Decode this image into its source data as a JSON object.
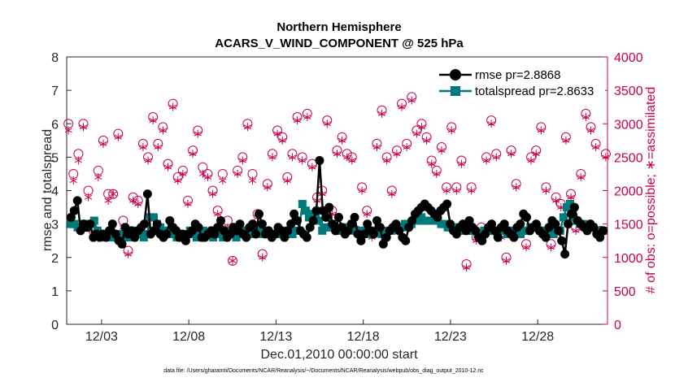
{
  "chart_data": {
    "type": "line",
    "title": "Northern Hemisphere",
    "subtitle": "ACARS_V_WIND_COMPONENT @ 525 hPa",
    "xlabel": "Dec.01,2010 00:00:00 start",
    "ylabel": "rmse and totalspread",
    "ylabel_right": "# of obs: o=possible; ∗=assimilated",
    "x_tick_labels": [
      "12/03",
      "12/08",
      "12/13",
      "12/18",
      "12/23",
      "12/28"
    ],
    "x_tick_days": [
      2,
      7,
      12,
      17,
      22,
      27
    ],
    "xlim": [
      0,
      31
    ],
    "ylim": [
      0,
      8
    ],
    "y_ticks": [
      "0",
      "1",
      "2",
      "3",
      "4",
      "5",
      "6",
      "7",
      "8"
    ],
    "ylim_right": [
      0,
      4000
    ],
    "y_ticks_right": [
      "0",
      "500",
      "1000",
      "1500",
      "2000",
      "2500",
      "3000",
      "3500",
      "4000"
    ],
    "grid": false,
    "legend_position": "top-right",
    "footnote": "data file: /Users/gharamti/Documents/NCAR/Reanalysis/~/Documents/NCAR/Reanalysis/webpub/obs_diag_output_2010-12.nc",
    "series": [
      {
        "name": "rmse pr=2.8868",
        "color": "#000000",
        "axis": "left",
        "values": [
          3.2,
          3.4,
          3.7,
          2.8,
          3.0,
          2.9,
          3.0,
          2.6,
          2.7,
          2.6,
          2.7,
          2.6,
          2.8,
          3.0,
          2.7,
          2.5,
          2.4,
          2.9,
          2.7,
          2.8,
          2.6,
          2.8,
          2.9,
          3.0,
          3.9,
          2.7,
          2.8,
          3.0,
          2.7,
          2.6,
          2.7,
          3.1,
          2.9,
          2.8,
          2.6,
          2.7,
          2.5,
          2.7,
          2.8,
          3.0,
          2.9,
          2.6,
          2.6,
          2.7,
          2.8,
          2.7,
          2.9,
          3.1,
          2.8,
          2.6,
          2.7,
          2.9,
          2.8,
          3.0,
          2.7,
          2.6,
          2.9,
          3.0,
          2.7,
          3.3,
          3.0,
          2.7,
          2.8,
          2.6,
          2.7,
          2.9,
          2.8,
          2.6,
          2.8,
          3.0,
          3.3,
          3.1,
          2.8,
          2.7,
          2.6,
          2.9,
          3.1,
          3.4,
          4.9,
          3.4,
          3.2,
          3.5,
          3.0,
          2.8,
          3.2,
          2.9,
          2.7,
          2.8,
          3.0,
          3.2,
          2.7,
          2.5,
          2.7,
          3.0,
          2.8,
          2.7,
          3.1,
          2.9,
          2.4,
          2.6,
          2.8,
          2.9,
          3.0,
          2.8,
          2.6,
          2.5,
          2.9,
          3.1,
          3.3,
          3.4,
          3.5,
          3.6,
          3.5,
          3.4,
          3.3,
          3.2,
          3.4,
          3.5,
          3.6,
          3.0,
          2.8,
          2.7,
          2.9,
          3.0,
          2.8,
          3.1,
          2.9,
          2.8,
          2.6,
          2.5,
          2.7,
          2.9,
          3.0,
          2.8,
          2.6,
          2.9,
          3.0,
          2.8,
          2.7,
          2.6,
          2.9,
          3.0,
          3.3,
          3.2,
          2.8,
          2.9,
          3.0,
          2.8,
          2.7,
          2.6,
          2.9,
          3.1,
          3.0,
          2.8,
          2.5,
          2.1,
          3.0,
          3.3,
          3.5,
          3.1,
          3.0,
          2.9,
          2.8,
          3.0,
          2.9,
          2.7,
          2.6,
          2.8
        ]
      },
      {
        "name": "totalspread pr=2.8633",
        "color": "#007a7a",
        "axis": "left",
        "values": [
          3.0,
          3.0,
          2.9,
          2.9,
          3.0,
          2.9,
          3.0,
          3.1,
          2.8,
          2.7,
          2.6,
          2.6,
          2.7,
          2.6,
          2.6,
          2.7,
          2.7,
          2.6,
          2.7,
          2.6,
          2.8,
          2.7,
          2.6,
          2.7,
          3.2,
          3.2,
          3.0,
          2.9,
          2.8,
          2.7,
          2.7,
          2.7,
          2.6,
          2.6,
          2.7,
          2.7,
          2.8,
          2.7,
          2.6,
          2.7,
          2.8,
          2.7,
          2.7,
          2.6,
          2.7,
          2.7,
          2.6,
          2.7,
          2.8,
          2.7,
          2.6,
          2.7,
          2.8,
          2.8,
          2.7,
          2.7,
          2.8,
          2.8,
          2.7,
          2.8,
          2.7,
          2.7,
          2.7,
          2.7,
          2.8,
          2.7,
          2.7,
          2.7,
          2.8,
          2.8,
          3.6,
          3.4,
          3.2,
          3.3,
          3.3,
          3.1,
          2.8,
          2.9,
          2.9,
          3.0,
          2.9,
          2.8,
          2.8,
          2.9,
          2.9,
          3.0,
          2.8,
          2.8,
          2.7,
          2.8,
          2.7,
          2.7,
          2.8,
          2.8,
          2.7,
          2.7,
          2.8,
          2.8,
          2.9,
          2.9,
          2.9,
          3.0,
          3.0,
          3.0,
          3.1,
          3.1,
          3.2,
          3.1,
          3.1,
          3.1,
          3.2,
          3.1,
          3.0,
          3.0,
          2.9,
          2.9,
          2.9,
          2.9,
          2.8,
          2.8,
          2.8,
          2.8,
          2.8,
          2.7,
          2.7,
          2.8,
          2.8,
          2.8,
          2.8,
          2.7,
          2.8,
          2.8,
          2.7,
          2.8,
          2.8,
          2.8,
          2.7,
          2.8,
          2.8,
          2.9,
          2.9,
          2.9,
          2.8,
          2.8,
          2.8,
          2.7,
          2.7,
          2.8,
          2.8,
          3.2,
          3.5,
          3.6,
          3.2,
          3.1,
          3.0,
          3.0,
          2.9,
          2.9,
          2.9,
          2.8,
          2.8,
          2.8
        ]
      },
      {
        "name": "# of obs possible",
        "marker": "circle",
        "color": "#c8004f",
        "axis": "right",
        "values": [
          3000,
          2250,
          2550,
          3000,
          2000,
          1400,
          2300,
          2750,
          1950,
          1950,
          2850,
          1550,
          1100,
          1900,
          1850,
          2700,
          2500,
          3100,
          2700,
          2950,
          2400,
          3300,
          2200,
          2300,
          1850,
          2600,
          2900,
          2350,
          2250,
          2000,
          1700,
          2250,
          1550,
          950,
          2300,
          2500,
          3000,
          2250,
          1650,
          1050,
          2100,
          2550,
          2900,
          2800,
          2200,
          2550,
          3100,
          2500,
          3150,
          2400,
          1900,
          2000,
          3050,
          1700,
          2600,
          2800,
          2550,
          2500,
          1400,
          2050,
          1700,
          1350,
          2700,
          3200,
          2500,
          2000,
          2600,
          3300,
          2700,
          3400,
          2900,
          3000,
          2800,
          2450,
          2300,
          2650,
          2050,
          2950,
          2050,
          2450,
          900,
          2050,
          1300,
          1450,
          2500,
          3050,
          2550,
          1350,
          1000,
          2600,
          2100,
          1400,
          1200,
          2500,
          2600,
          2950,
          2050,
          1200,
          1900,
          1800,
          2800,
          1950,
          1450,
          2250,
          3150,
          2950,
          2700,
          1400,
          2550
        ]
      },
      {
        "name": "# of obs assimilated",
        "marker": "asterisk",
        "color": "#c8004f",
        "axis": "right",
        "values": [
          2900,
          2150,
          2450,
          2950,
          1900,
          1350,
          2200,
          2700,
          1850,
          1950,
          2800,
          1450,
          1050,
          1850,
          1800,
          2650,
          2450,
          3050,
          2650,
          2900,
          2350,
          3250,
          2150,
          2250,
          1800,
          2550,
          2850,
          2250,
          2200,
          1950,
          1650,
          2150,
          1450,
          950,
          2250,
          2450,
          2950,
          2150,
          1600,
          1000,
          2050,
          2500,
          2850,
          2750,
          2150,
          2500,
          3050,
          2450,
          3100,
          2350,
          1850,
          1950,
          3000,
          1650,
          2550,
          2750,
          2500,
          2450,
          1350,
          2000,
          1650,
          1300,
          2650,
          3150,
          2450,
          1950,
          2550,
          3250,
          2650,
          3350,
          2850,
          2950,
          2750,
          2400,
          2250,
          2600,
          2000,
          2900,
          2000,
          2400,
          850,
          2000,
          1250,
          1400,
          2450,
          3000,
          2500,
          1300,
          950,
          2550,
          2050,
          1350,
          1150,
          2450,
          2550,
          2900,
          2000,
          1150,
          1850,
          1750,
          2750,
          1900,
          1400,
          2200,
          3100,
          2900,
          2650,
          1350,
          2500
        ]
      }
    ]
  }
}
